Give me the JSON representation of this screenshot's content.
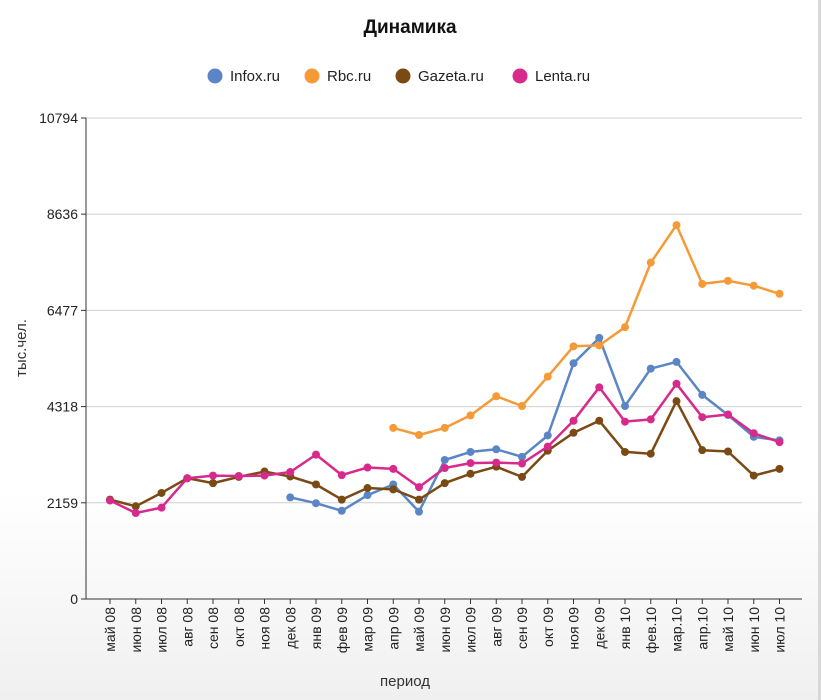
{
  "chart_data": {
    "type": "line",
    "title": "Динамика",
    "xlabel": "период",
    "ylabel": "тыс.чел.",
    "ylim": [
      0,
      10794
    ],
    "yticks": [
      0,
      2159,
      4318,
      6477,
      8636,
      10794
    ],
    "legend_position": "top-center",
    "grid": true,
    "categories": [
      "май 08",
      "июн 08",
      "июл 08",
      "авг 08",
      "сен 08",
      "окт 08",
      "ноя 08",
      "дек 08",
      "янв 09",
      "фев 09",
      "мар 09",
      "апр 09",
      "май 09",
      "июн 09",
      "июл 09",
      "авг 09",
      "сен 09",
      "окт 09",
      "ноя 09",
      "дек 09",
      "янв 10",
      "фев.10",
      "мар.10",
      "апр.10",
      "май 10",
      "июн 10",
      "июл 10"
    ],
    "series": [
      {
        "name": "Infox.ru",
        "color": "#5b86c5",
        "values": [
          null,
          null,
          null,
          null,
          null,
          null,
          null,
          2280,
          2150,
          1980,
          2330,
          2570,
          1960,
          3120,
          3300,
          3360,
          3190,
          3670,
          5290,
          5860,
          4330,
          5170,
          5320,
          4580,
          4130,
          3640,
          3560
        ]
      },
      {
        "name": "Rbc.ru",
        "color": "#f59a36",
        "values": [
          null,
          null,
          null,
          null,
          null,
          null,
          null,
          null,
          null,
          null,
          null,
          3840,
          3680,
          3840,
          4120,
          4550,
          4330,
          4990,
          5670,
          5690,
          6100,
          7550,
          8390,
          7070,
          7140,
          7030,
          6850
        ]
      },
      {
        "name": "Gazeta.ru",
        "color": "#7a4a14",
        "values": [
          2230,
          2080,
          2380,
          2710,
          2600,
          2740,
          2860,
          2750,
          2570,
          2230,
          2490,
          2460,
          2230,
          2600,
          2810,
          2970,
          2740,
          3330,
          3730,
          4000,
          3300,
          3260,
          4440,
          3340,
          3310,
          2770,
          2920
        ]
      },
      {
        "name": "Lenta.ru",
        "color": "#d62a8c",
        "values": [
          2210,
          1930,
          2050,
          2710,
          2770,
          2760,
          2770,
          2850,
          3240,
          2780,
          2950,
          2920,
          2510,
          2940,
          3050,
          3060,
          3040,
          3420,
          4000,
          4750,
          3980,
          4030,
          4830,
          4080,
          4140,
          3720,
          3520
        ]
      }
    ]
  }
}
